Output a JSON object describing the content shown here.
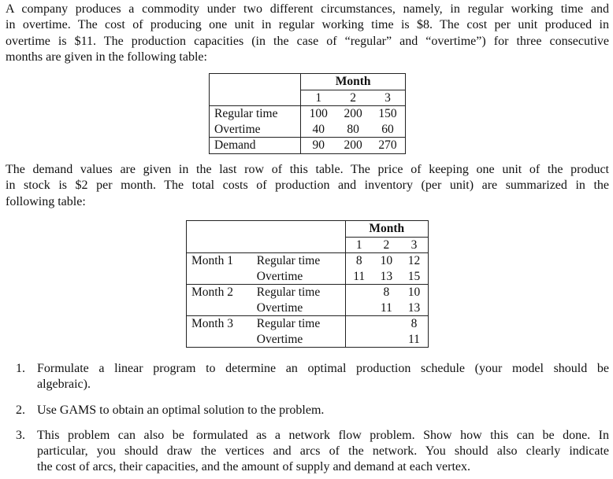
{
  "intro_lines": [
    "A company produces a commodity under two different circumstances, namely, in regular working time and",
    "in overtime. The cost of producing one unit in regular working time is $8. The cost per unit produced in",
    "overtime is $11. The production capacities (in the case of “regular” and “overtime”) for three consecutive",
    "months are given in the following table:"
  ],
  "capacity_table": {
    "header": "Month",
    "months": [
      "1",
      "2",
      "3"
    ],
    "rows": [
      {
        "label": "Regular time",
        "values": [
          "100",
          "200",
          "150"
        ]
      },
      {
        "label": "Overtime",
        "values": [
          "40",
          "80",
          "60"
        ]
      },
      {
        "label": "Demand",
        "values": [
          "90",
          "200",
          "270"
        ]
      }
    ]
  },
  "middle_lines": [
    "The demand values are given in the last row of this table. The price of keeping one unit of the product",
    "in stock is $2 per month. The total costs of production and inventory (per unit) are summarized in the",
    "following table:"
  ],
  "cost_table": {
    "header": "Month",
    "months": [
      "1",
      "2",
      "3"
    ],
    "groups": [
      {
        "month": "Month 1",
        "rows": [
          {
            "label": "Regular time",
            "values": [
              "8",
              "10",
              "12"
            ]
          },
          {
            "label": "Overtime",
            "values": [
              "11",
              "13",
              "15"
            ]
          }
        ]
      },
      {
        "month": "Month 2",
        "rows": [
          {
            "label": "Regular time",
            "values": [
              "",
              "8",
              "10"
            ]
          },
          {
            "label": "Overtime",
            "values": [
              "",
              "11",
              "13"
            ]
          }
        ]
      },
      {
        "month": "Month 3",
        "rows": [
          {
            "label": "Regular time",
            "values": [
              "",
              "",
              "8"
            ]
          },
          {
            "label": "Overtime",
            "values": [
              "",
              "",
              "11"
            ]
          }
        ]
      }
    ]
  },
  "questions": [
    {
      "num": "1.",
      "lines": [
        "Formulate a linear program to determine an optimal production schedule (your model should be",
        "algebraic)."
      ]
    },
    {
      "num": "2.",
      "lines": [
        "Use GAMS to obtain an optimal solution to the problem."
      ]
    },
    {
      "num": "3.",
      "lines": [
        "This problem can also be formulated as a network flow problem. Show how this can be done. In",
        "particular, you should draw the vertices and arcs of the network. You should also clearly indicate",
        "the cost of arcs, their capacities, and the amount of supply and demand at each vertex."
      ]
    }
  ]
}
